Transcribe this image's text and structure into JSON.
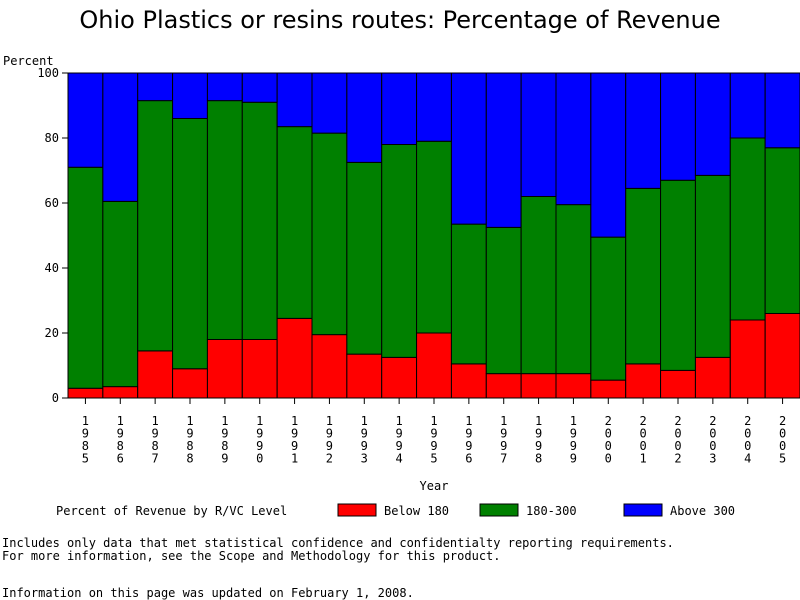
{
  "chart_data": {
    "type": "bar",
    "stacked": true,
    "title": "Ohio Plastics or resins routes: Percentage of Revenue",
    "ylabel": "Percent",
    "xlabel": "Year",
    "ylim": [
      0,
      100
    ],
    "yticks": [
      0,
      20,
      40,
      60,
      80,
      100
    ],
    "categories": [
      "1985",
      "1986",
      "1987",
      "1988",
      "1989",
      "1990",
      "1991",
      "1992",
      "1993",
      "1994",
      "1995",
      "1996",
      "1997",
      "1998",
      "1999",
      "2000",
      "2001",
      "2002",
      "2003",
      "2004",
      "2005"
    ],
    "legend_title": "Percent of Revenue by R/VC Level",
    "series": [
      {
        "name": "Below 180",
        "color": "#ff0000",
        "values": [
          3,
          3.5,
          14.5,
          9,
          18,
          18,
          24.5,
          19.5,
          13.5,
          12.5,
          20,
          10.5,
          7.5,
          7.5,
          7.5,
          5.5,
          10.5,
          8.5,
          12.5,
          24,
          26
        ]
      },
      {
        "name": "180-300",
        "color": "#008000",
        "values": [
          68,
          57,
          77,
          77,
          73.5,
          73,
          59,
          62,
          59,
          65.5,
          59,
          43,
          45,
          54.5,
          52,
          44,
          54,
          58.5,
          56,
          56,
          51
        ]
      },
      {
        "name": "Above 300",
        "color": "#0000ff",
        "values": [
          29,
          39.5,
          8.5,
          14,
          8.5,
          9,
          16.5,
          18.5,
          27.5,
          22,
          21,
          46.5,
          47.5,
          38,
          40.5,
          50.5,
          35.5,
          33,
          31.5,
          20,
          23
        ]
      }
    ]
  },
  "footnotes": {
    "line1": "Includes only data that met statistical confidence and confidentialty reporting requirements.",
    "line2": "For more information, see the Scope and Methodology for this product.",
    "line3": "Information on this page was updated on February 1, 2008."
  }
}
